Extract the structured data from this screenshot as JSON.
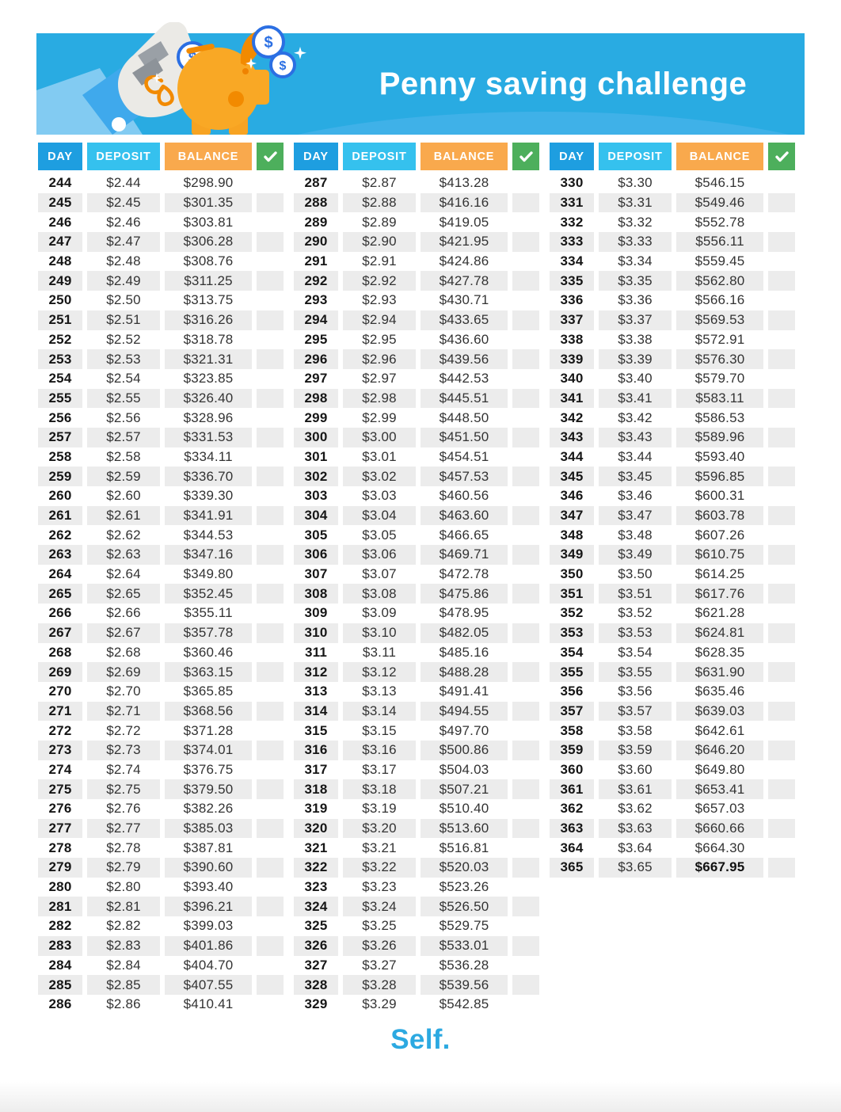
{
  "header": {
    "title": "Penny saving challenge",
    "coin_symbol": "$",
    "illustration": "hand-dropping-coin-into-piggy-bank"
  },
  "table_headers": {
    "day": "DAY",
    "deposit": "DEPOSIT",
    "balance": "BALANCE",
    "check_icon": "checkmark"
  },
  "colors": {
    "banner_blue": "#29ABE2",
    "banner_hill_blue": "#3FB1E8",
    "day_header": "#1E9EE0",
    "deposit_header": "#35C1EE",
    "balance_header": "#F9A94D",
    "check_header": "#4DAF5C",
    "row_stripe": "#ECECEC",
    "pig_orange": "#F9A825",
    "pig_dark_orange": "#F28A00",
    "coin_border_blue": "#2B6FE3",
    "logo_blue": "#2CA9E1"
  },
  "footer": {
    "logo": "Self."
  },
  "tables": [
    {
      "rows": [
        [
          "244",
          "$2.44",
          "$298.90"
        ],
        [
          "245",
          "$2.45",
          "$301.35"
        ],
        [
          "246",
          "$2.46",
          "$303.81"
        ],
        [
          "247",
          "$2.47",
          "$306.28"
        ],
        [
          "248",
          "$2.48",
          "$308.76"
        ],
        [
          "249",
          "$2.49",
          "$311.25"
        ],
        [
          "250",
          "$2.50",
          "$313.75"
        ],
        [
          "251",
          "$2.51",
          "$316.26"
        ],
        [
          "252",
          "$2.52",
          "$318.78"
        ],
        [
          "253",
          "$2.53",
          "$321.31"
        ],
        [
          "254",
          "$2.54",
          "$323.85"
        ],
        [
          "255",
          "$2.55",
          "$326.40"
        ],
        [
          "256",
          "$2.56",
          "$328.96"
        ],
        [
          "257",
          "$2.57",
          "$331.53"
        ],
        [
          "258",
          "$2.58",
          "$334.11"
        ],
        [
          "259",
          "$2.59",
          "$336.70"
        ],
        [
          "260",
          "$2.60",
          "$339.30"
        ],
        [
          "261",
          "$2.61",
          "$341.91"
        ],
        [
          "262",
          "$2.62",
          "$344.53"
        ],
        [
          "263",
          "$2.63",
          "$347.16"
        ],
        [
          "264",
          "$2.64",
          "$349.80"
        ],
        [
          "265",
          "$2.65",
          "$352.45"
        ],
        [
          "266",
          "$2.66",
          "$355.11"
        ],
        [
          "267",
          "$2.67",
          "$357.78"
        ],
        [
          "268",
          "$2.68",
          "$360.46"
        ],
        [
          "269",
          "$2.69",
          "$363.15"
        ],
        [
          "270",
          "$2.70",
          "$365.85"
        ],
        [
          "271",
          "$2.71",
          "$368.56"
        ],
        [
          "272",
          "$2.72",
          "$371.28"
        ],
        [
          "273",
          "$2.73",
          "$374.01"
        ],
        [
          "274",
          "$2.74",
          "$376.75"
        ],
        [
          "275",
          "$2.75",
          "$379.50"
        ],
        [
          "276",
          "$2.76",
          "$382.26"
        ],
        [
          "277",
          "$2.77",
          "$385.03"
        ],
        [
          "278",
          "$2.78",
          "$387.81"
        ],
        [
          "279",
          "$2.79",
          "$390.60"
        ],
        [
          "280",
          "$2.80",
          "$393.40"
        ],
        [
          "281",
          "$2.81",
          "$396.21"
        ],
        [
          "282",
          "$2.82",
          "$399.03"
        ],
        [
          "283",
          "$2.83",
          "$401.86"
        ],
        [
          "284",
          "$2.84",
          "$404.70"
        ],
        [
          "285",
          "$2.85",
          "$407.55"
        ],
        [
          "286",
          "$2.86",
          "$410.41"
        ]
      ]
    },
    {
      "rows": [
        [
          "287",
          "$2.87",
          "$413.28"
        ],
        [
          "288",
          "$2.88",
          "$416.16"
        ],
        [
          "289",
          "$2.89",
          "$419.05"
        ],
        [
          "290",
          "$2.90",
          "$421.95"
        ],
        [
          "291",
          "$2.91",
          "$424.86"
        ],
        [
          "292",
          "$2.92",
          "$427.78"
        ],
        [
          "293",
          "$2.93",
          "$430.71"
        ],
        [
          "294",
          "$2.94",
          "$433.65"
        ],
        [
          "295",
          "$2.95",
          "$436.60"
        ],
        [
          "296",
          "$2.96",
          "$439.56"
        ],
        [
          "297",
          "$2.97",
          "$442.53"
        ],
        [
          "298",
          "$2.98",
          "$445.51"
        ],
        [
          "299",
          "$2.99",
          "$448.50"
        ],
        [
          "300",
          "$3.00",
          "$451.50"
        ],
        [
          "301",
          "$3.01",
          "$454.51"
        ],
        [
          "302",
          "$3.02",
          "$457.53"
        ],
        [
          "303",
          "$3.03",
          "$460.56"
        ],
        [
          "304",
          "$3.04",
          "$463.60"
        ],
        [
          "305",
          "$3.05",
          "$466.65"
        ],
        [
          "306",
          "$3.06",
          "$469.71"
        ],
        [
          "307",
          "$3.07",
          "$472.78"
        ],
        [
          "308",
          "$3.08",
          "$475.86"
        ],
        [
          "309",
          "$3.09",
          "$478.95"
        ],
        [
          "310",
          "$3.10",
          "$482.05"
        ],
        [
          "311",
          "$3.11",
          "$485.16"
        ],
        [
          "312",
          "$3.12",
          "$488.28"
        ],
        [
          "313",
          "$3.13",
          "$491.41"
        ],
        [
          "314",
          "$3.14",
          "$494.55"
        ],
        [
          "315",
          "$3.15",
          "$497.70"
        ],
        [
          "316",
          "$3.16",
          "$500.86"
        ],
        [
          "317",
          "$3.17",
          "$504.03"
        ],
        [
          "318",
          "$3.18",
          "$507.21"
        ],
        [
          "319",
          "$3.19",
          "$510.40"
        ],
        [
          "320",
          "$3.20",
          "$513.60"
        ],
        [
          "321",
          "$3.21",
          "$516.81"
        ],
        [
          "322",
          "$3.22",
          "$520.03"
        ],
        [
          "323",
          "$3.23",
          "$523.26"
        ],
        [
          "324",
          "$3.24",
          "$526.50"
        ],
        [
          "325",
          "$3.25",
          "$529.75"
        ],
        [
          "326",
          "$3.26",
          "$533.01"
        ],
        [
          "327",
          "$3.27",
          "$536.28"
        ],
        [
          "328",
          "$3.28",
          "$539.56"
        ],
        [
          "329",
          "$3.29",
          "$542.85"
        ]
      ]
    },
    {
      "rows": [
        [
          "330",
          "$3.30",
          "$546.15"
        ],
        [
          "331",
          "$3.31",
          "$549.46"
        ],
        [
          "332",
          "$3.32",
          "$552.78"
        ],
        [
          "333",
          "$3.33",
          "$556.11"
        ],
        [
          "334",
          "$3.34",
          "$559.45"
        ],
        [
          "335",
          "$3.35",
          "$562.80"
        ],
        [
          "336",
          "$3.36",
          "$566.16"
        ],
        [
          "337",
          "$3.37",
          "$569.53"
        ],
        [
          "338",
          "$3.38",
          "$572.91"
        ],
        [
          "339",
          "$3.39",
          "$576.30"
        ],
        [
          "340",
          "$3.40",
          "$579.70"
        ],
        [
          "341",
          "$3.41",
          "$583.11"
        ],
        [
          "342",
          "$3.42",
          "$586.53"
        ],
        [
          "343",
          "$3.43",
          "$589.96"
        ],
        [
          "344",
          "$3.44",
          "$593.40"
        ],
        [
          "345",
          "$3.45",
          "$596.85"
        ],
        [
          "346",
          "$3.46",
          "$600.31"
        ],
        [
          "347",
          "$3.47",
          "$603.78"
        ],
        [
          "348",
          "$3.48",
          "$607.26"
        ],
        [
          "349",
          "$3.49",
          "$610.75"
        ],
        [
          "350",
          "$3.50",
          "$614.25"
        ],
        [
          "351",
          "$3.51",
          "$617.76"
        ],
        [
          "352",
          "$3.52",
          "$621.28"
        ],
        [
          "353",
          "$3.53",
          "$624.81"
        ],
        [
          "354",
          "$3.54",
          "$628.35"
        ],
        [
          "355",
          "$3.55",
          "$631.90"
        ],
        [
          "356",
          "$3.56",
          "$635.46"
        ],
        [
          "357",
          "$3.57",
          "$639.03"
        ],
        [
          "358",
          "$3.58",
          "$642.61"
        ],
        [
          "359",
          "$3.59",
          "$646.20"
        ],
        [
          "360",
          "$3.60",
          "$649.80"
        ],
        [
          "361",
          "$3.61",
          "$653.41"
        ],
        [
          "362",
          "$3.62",
          "$657.03"
        ],
        [
          "363",
          "$3.63",
          "$660.66"
        ],
        [
          "364",
          "$3.64",
          "$664.30"
        ],
        [
          "365",
          "$3.65",
          "$667.95",
          "bold"
        ]
      ]
    }
  ]
}
